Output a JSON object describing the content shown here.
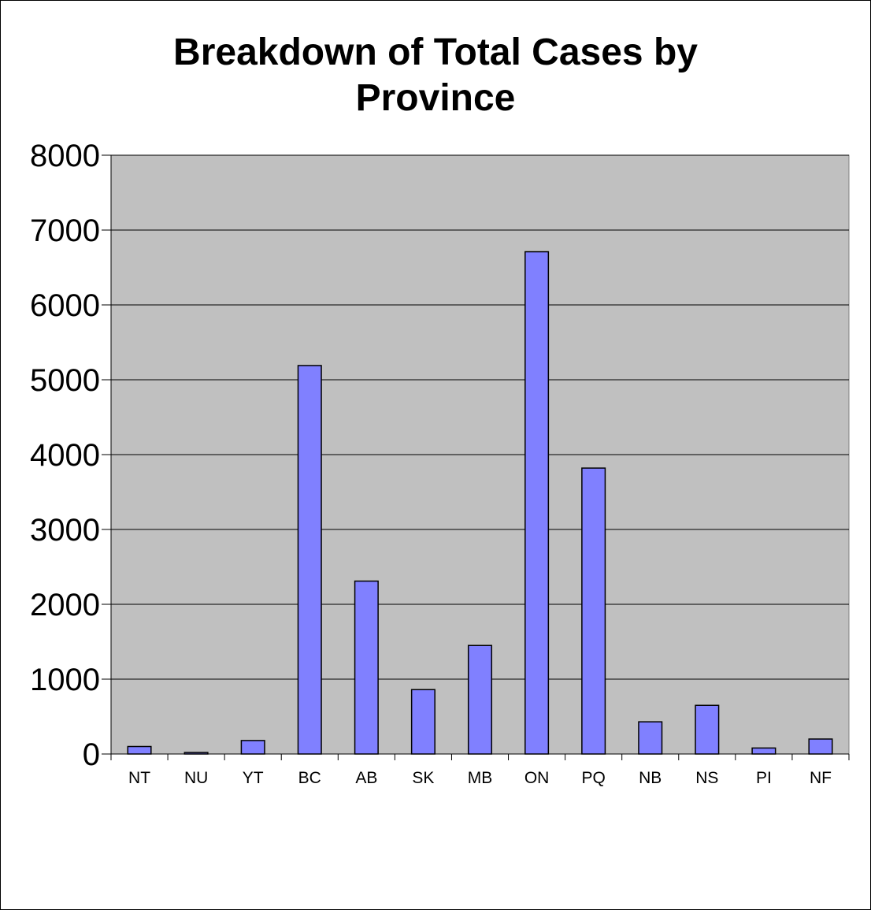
{
  "chart_data": {
    "type": "bar",
    "title": "Breakdown of Total Cases by\nProvince",
    "xlabel": "",
    "ylabel": "",
    "categories": [
      "NT",
      "NU",
      "YT",
      "BC",
      "AB",
      "SK",
      "MB",
      "ON",
      "PQ",
      "NB",
      "NS",
      "PI",
      "NF"
    ],
    "values": [
      100,
      20,
      180,
      5190,
      2310,
      860,
      1450,
      6710,
      3820,
      430,
      650,
      80,
      200
    ],
    "ylim": [
      0,
      8000
    ],
    "yticks": [
      0,
      1000,
      2000,
      3000,
      4000,
      5000,
      6000,
      7000,
      8000
    ],
    "ytick_labels": [
      "0",
      "1000",
      "2000",
      "3000",
      "4000",
      "5000",
      "6000",
      "7000",
      "8000"
    ],
    "grid": true,
    "legend": "none",
    "colors": {
      "plot_background": "#c0c0c0",
      "bar_fill": "#8080ff",
      "bar_stroke": "#000000",
      "gridline": "#000000"
    }
  }
}
